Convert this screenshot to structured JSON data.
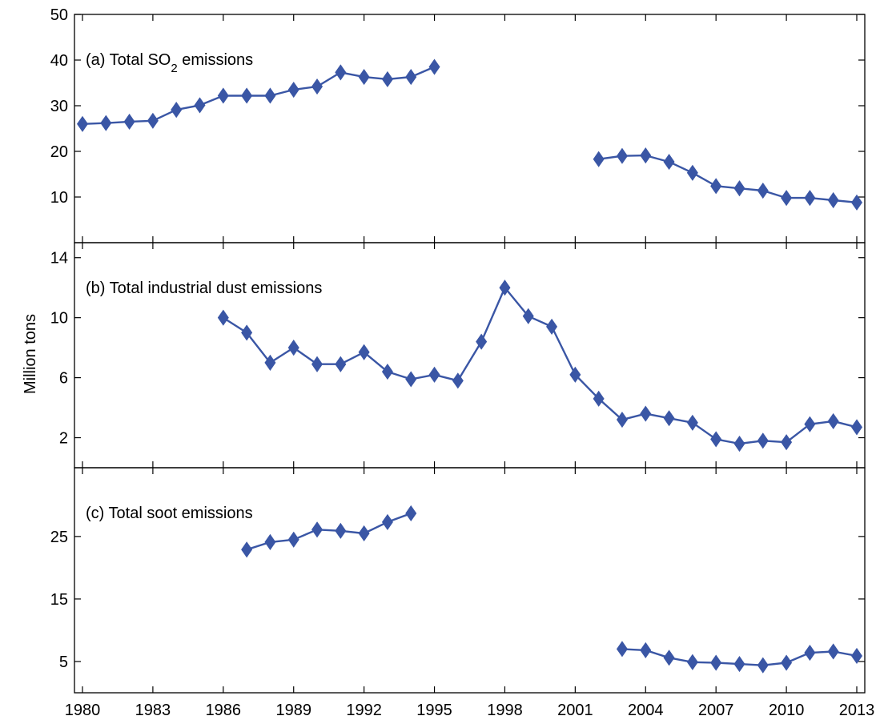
{
  "chart_data": {
    "type": "line",
    "ylabel": "Million tons",
    "x_ticks": [
      1980,
      1983,
      1986,
      1989,
      1992,
      1995,
      1998,
      2001,
      2004,
      2007,
      2010,
      2013
    ],
    "xlim": [
      1980,
      2013
    ],
    "line_color": "#3a56a5",
    "marker": "diamond",
    "panels": [
      {
        "id": "so2",
        "label_prefix": "(a) Total SO",
        "label_subscript": "2",
        "label_suffix": " emissions",
        "ylim": [
          0,
          50
        ],
        "y_ticks": [
          10,
          20,
          30,
          40,
          50
        ],
        "segments": [
          {
            "x": [
              1980,
              1981,
              1982,
              1983,
              1984,
              1985,
              1986,
              1987,
              1988,
              1989,
              1990,
              1991,
              1992,
              1993,
              1994,
              1995
            ],
            "y": [
              26.0,
              26.2,
              26.5,
              26.7,
              29.1,
              30.1,
              32.2,
              32.2,
              32.2,
              33.5,
              34.2,
              37.3,
              36.3,
              35.8,
              36.3,
              38.5
            ]
          },
          {
            "x": [
              2002,
              2003,
              2004,
              2005,
              2006,
              2007,
              2008,
              2009,
              2010,
              2011,
              2012,
              2013
            ],
            "y": [
              18.3,
              19.0,
              19.1,
              17.7,
              15.3,
              12.4,
              11.9,
              11.4,
              9.8,
              9.8,
              9.3,
              8.8
            ]
          }
        ]
      },
      {
        "id": "dust",
        "label": "(b) Total industrial dust emissions",
        "ylim": [
          0,
          15
        ],
        "y_ticks": [
          2,
          6,
          10,
          14
        ],
        "segments": [
          {
            "x": [
              1986,
              1987,
              1988,
              1989,
              1990,
              1991,
              1992,
              1993,
              1994,
              1995,
              1996,
              1997,
              1998,
              1999,
              2000,
              2001,
              2002,
              2003,
              2004,
              2005,
              2006,
              2007,
              2008,
              2009,
              2010,
              2011,
              2012,
              2013
            ],
            "y": [
              10.0,
              9.0,
              7.0,
              8.0,
              6.9,
              6.9,
              7.7,
              6.4,
              5.9,
              6.2,
              5.8,
              8.4,
              12.0,
              10.1,
              9.4,
              6.2,
              4.6,
              3.2,
              3.6,
              3.3,
              3.0,
              1.9,
              1.6,
              1.8,
              1.7,
              2.9,
              3.1,
              2.7
            ]
          }
        ]
      },
      {
        "id": "soot",
        "label": "(c) Total soot emissions",
        "ylim": [
          0,
          36
        ],
        "y_ticks": [
          5,
          15,
          25
        ],
        "segments": [
          {
            "x": [
              1987,
              1988,
              1989,
              1990,
              1991,
              1992,
              1993,
              1994
            ],
            "y": [
              22.9,
              24.1,
              24.5,
              26.1,
              25.9,
              25.5,
              27.3,
              28.7
            ]
          },
          {
            "x": [
              2003,
              2004,
              2005,
              2006,
              2007,
              2008,
              2009,
              2010,
              2011,
              2012,
              2013
            ],
            "y": [
              7.0,
              6.8,
              5.6,
              4.9,
              4.8,
              4.6,
              4.4,
              4.8,
              6.4,
              6.6,
              5.9
            ]
          }
        ]
      }
    ]
  }
}
